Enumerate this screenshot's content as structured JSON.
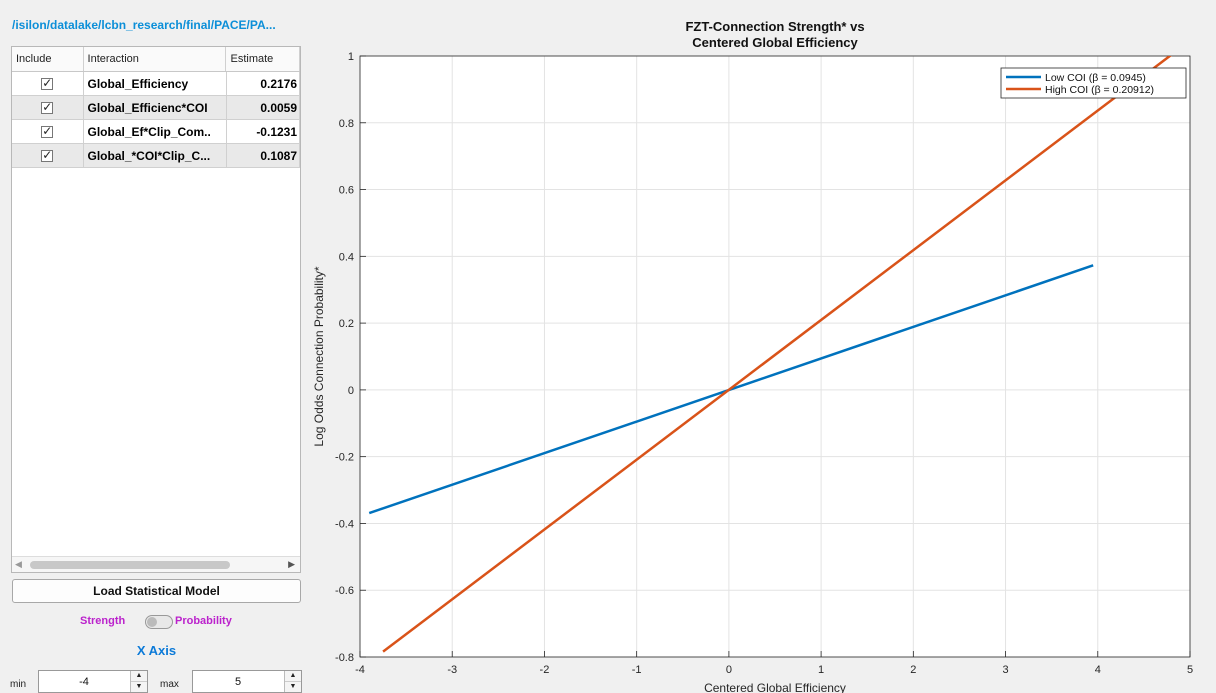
{
  "path_title": "/isilon/datalake/lcbn_research/final/PACE/PA...",
  "table": {
    "headers": [
      "Include",
      "Interaction",
      "Estimate"
    ],
    "rows": [
      {
        "include": true,
        "interaction": "Global_Efficiency",
        "estimate": "0.2176"
      },
      {
        "include": true,
        "interaction": "Global_Efficienc*COI",
        "estimate": "0.0059"
      },
      {
        "include": true,
        "interaction": "Global_Ef*Clip_Com..",
        "estimate": "-0.1231"
      },
      {
        "include": true,
        "interaction": "Global_*COI*Clip_C...",
        "estimate": "0.1087"
      }
    ]
  },
  "load_button": "Load Statistical Model",
  "toggle": {
    "left_label": "Strength",
    "right_label": "Probability"
  },
  "x_axis_section": {
    "title": "X Axis",
    "min_label": "min",
    "min_value": "-4",
    "max_label": "max",
    "max_value": "5"
  },
  "chart_data": {
    "type": "line",
    "title": "FZT-Connection Strength* vs",
    "subtitle": "Centered Global Efficiency",
    "xlabel": "Centered Global Efficiency",
    "ylabel": "Log Odds Connection Probability*",
    "xlim": [
      -4,
      5
    ],
    "ylim": [
      -0.8,
      1
    ],
    "xticks": [
      -4,
      -3,
      -2,
      -1,
      0,
      1,
      2,
      3,
      4,
      5
    ],
    "yticks": [
      -0.8,
      -0.6,
      -0.4,
      -0.2,
      0,
      0.2,
      0.4,
      0.6,
      0.8,
      1
    ],
    "grid": true,
    "legend_position": "top-right",
    "series": [
      {
        "name": "Low COI  (β = 0.0945)",
        "color": "#0072bd",
        "x": [
          -3.9,
          3.95
        ],
        "y": [
          -0.369,
          0.373
        ]
      },
      {
        "name": "High COI  (β = 0.20912)",
        "color": "#d95319",
        "x": [
          -3.75,
          4.8
        ],
        "y": [
          -0.784,
          1.004
        ]
      }
    ]
  }
}
